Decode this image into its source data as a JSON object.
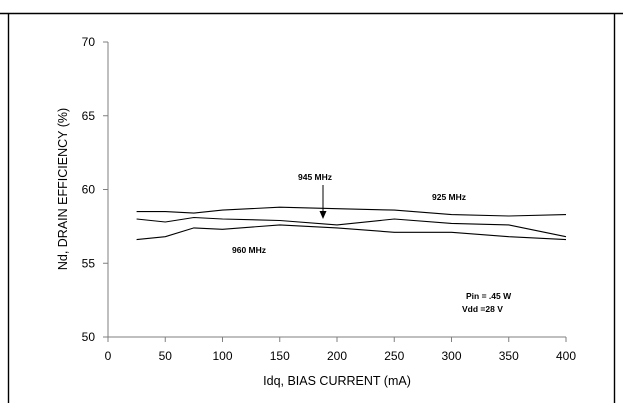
{
  "chart_data": {
    "type": "line",
    "xlabel": "Idq, BIAS CURRENT  (mA)",
    "ylabel": "Nd, DRAIN EFFICIENCY  (%)",
    "xlim": [
      0,
      400
    ],
    "ylim": [
      50,
      70
    ],
    "x_ticks": [
      "0",
      "50",
      "100",
      "150",
      "200",
      "250",
      "300",
      "350",
      "400"
    ],
    "y_ticks": [
      "50",
      "55",
      "60",
      "65",
      "70"
    ],
    "grid": false,
    "line_color": "#000000",
    "x": [
      25,
      50,
      75,
      100,
      150,
      200,
      250,
      300,
      350,
      400
    ],
    "series": [
      {
        "name": "925 MHz",
        "values": [
          58.5,
          58.5,
          58.4,
          58.6,
          58.8,
          58.7,
          58.6,
          58.3,
          58.2,
          58.3
        ]
      },
      {
        "name": "945 MHz",
        "values": [
          58.0,
          57.8,
          58.1,
          58.0,
          57.9,
          57.6,
          58.0,
          57.7,
          57.6,
          56.8
        ]
      },
      {
        "name": "960 MHz",
        "values": [
          56.6,
          56.8,
          57.4,
          57.3,
          57.6,
          57.4,
          57.1,
          57.1,
          56.8,
          56.6
        ]
      }
    ],
    "annotations": {
      "label_925": "925 MHz",
      "label_945": "945 MHz",
      "label_960": "960 MHz",
      "conditions_line1": "Pin = .45 W",
      "conditions_line2": "Vdd =28 V"
    }
  }
}
